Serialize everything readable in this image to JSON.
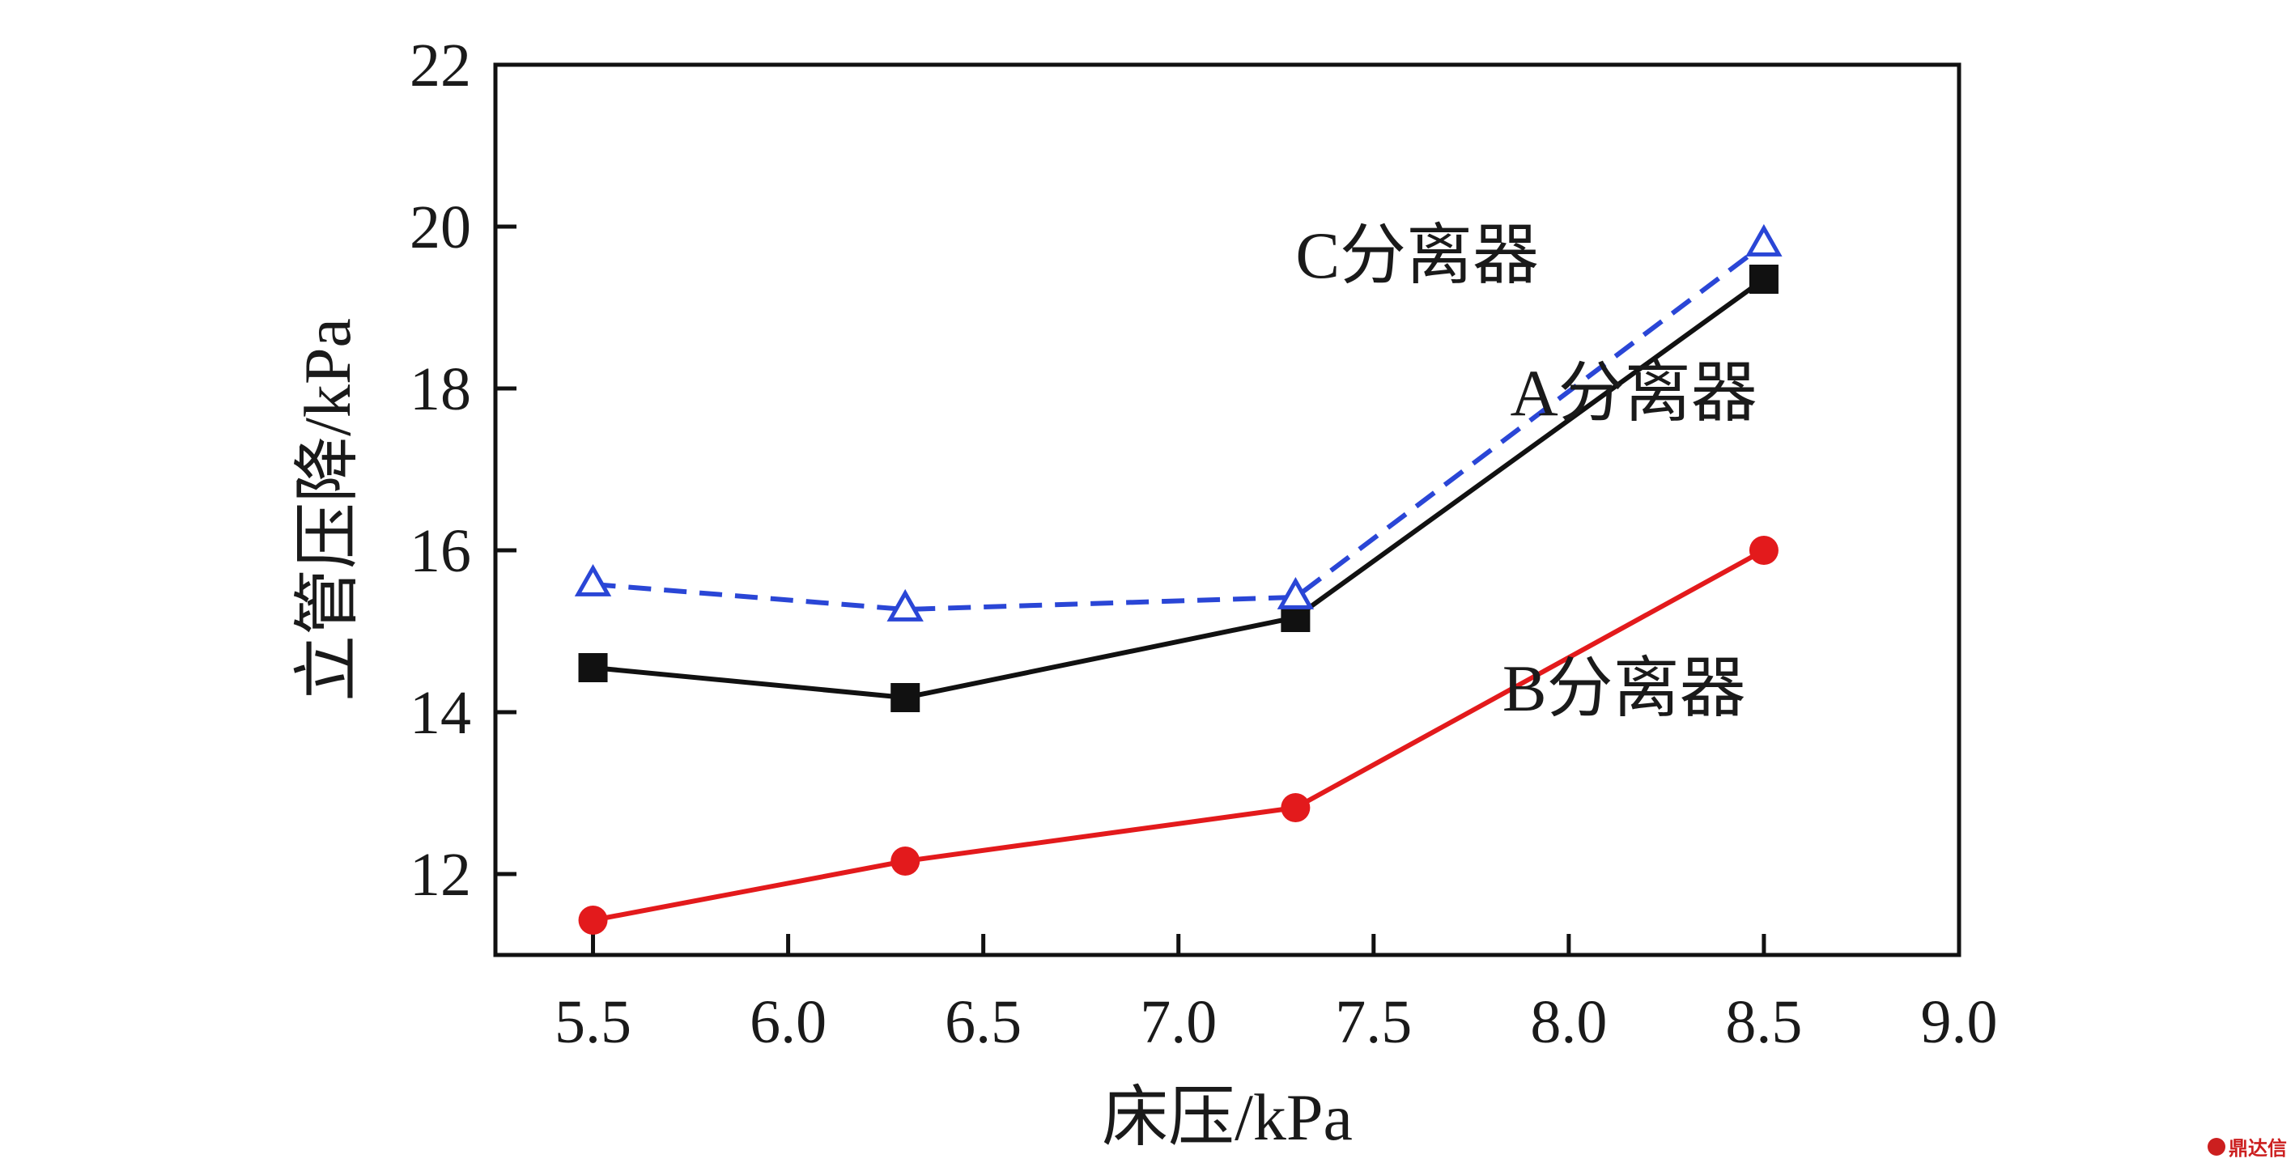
{
  "chart_data": {
    "type": "line",
    "title": "",
    "xlabel": "床压/kPa",
    "ylabel": "立管压降/kPa",
    "xlim": [
      5.25,
      9.0
    ],
    "ylim": [
      11.0,
      22.0
    ],
    "xticks": [
      5.5,
      6.0,
      6.5,
      7.0,
      7.5,
      8.0,
      8.5,
      9.0
    ],
    "xtick_labels": [
      "5.5",
      "6.0",
      "6.5",
      "7.0",
      "7.5",
      "8.0",
      "8.5",
      "9.0"
    ],
    "yticks": [
      12,
      14,
      16,
      18,
      20,
      22
    ],
    "ytick_labels": [
      "12",
      "14",
      "16",
      "18",
      "20",
      "22"
    ],
    "grid": false,
    "x": [
      5.5,
      6.3,
      7.3,
      8.5
    ],
    "series": [
      {
        "name": "A分离器",
        "values": [
          14.55,
          14.18,
          15.17,
          19.35
        ],
        "color": "#111111",
        "marker": "square",
        "line": "solid"
      },
      {
        "name": "B分离器",
        "values": [
          11.43,
          12.16,
          12.82,
          16.0
        ],
        "color": "#e31a1c",
        "marker": "circle",
        "line": "solid"
      },
      {
        "name": "C分离器",
        "values": [
          15.58,
          15.27,
          15.42,
          19.78
        ],
        "color": "#2a46d6",
        "marker": "triangle-open",
        "line": "dashed"
      }
    ]
  },
  "watermark": {
    "text": "鼎达信",
    "icon": "logo-icon"
  }
}
